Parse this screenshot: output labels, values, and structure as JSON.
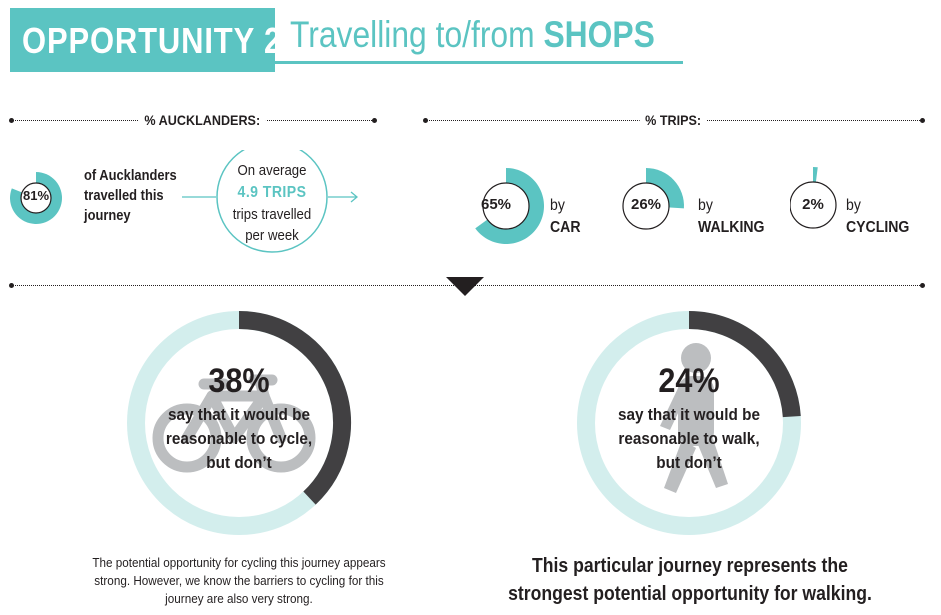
{
  "header": {
    "tag": "OPPORTUNITY 2",
    "title_prefix": "Travelling to/from ",
    "title_emphasis": "SHOPS"
  },
  "colors": {
    "teal": "#5bc4c2",
    "light_teal": "#d3eeed",
    "dark_gray": "#414042",
    "icon_gray": "#bcbec0"
  },
  "aucklanders": {
    "label": "% AUCKLANDERS:",
    "percent_label": "81%",
    "percent_value": 81,
    "text_lines": [
      "of Aucklanders",
      "travelled this",
      "journey"
    ],
    "average_intro": "On average",
    "average_trips": "4.9 TRIPS",
    "average_lines": [
      "trips travelled",
      "per week"
    ]
  },
  "trips": {
    "label": "% TRIPS:",
    "items": [
      {
        "percent_label": "65%",
        "value": 65,
        "by": "by",
        "mode": "CAR"
      },
      {
        "percent_label": "26%",
        "value": 26,
        "by": "by",
        "mode": "WALKING"
      },
      {
        "percent_label": "2%",
        "value": 2,
        "by": "by",
        "mode": "CYCLING"
      }
    ]
  },
  "cycle": {
    "percent_label": "38%",
    "value": 38,
    "lines": [
      "say that it would be",
      "reasonable to cycle,",
      "but don’t"
    ],
    "icon": "bicycle-icon",
    "note_lines": [
      "The potential opportunity for cycling this journey appears",
      "strong. However, we know the barriers to cycling for this",
      "journey are also very strong."
    ]
  },
  "walk": {
    "percent_label": "24%",
    "value": 24,
    "lines": [
      "say that it would be",
      "reasonable to walk,",
      "but don’t"
    ],
    "icon": "walking-person-icon",
    "note_lines": [
      "This particular journey represents the",
      "strongest potential opportunity for walking."
    ]
  }
}
